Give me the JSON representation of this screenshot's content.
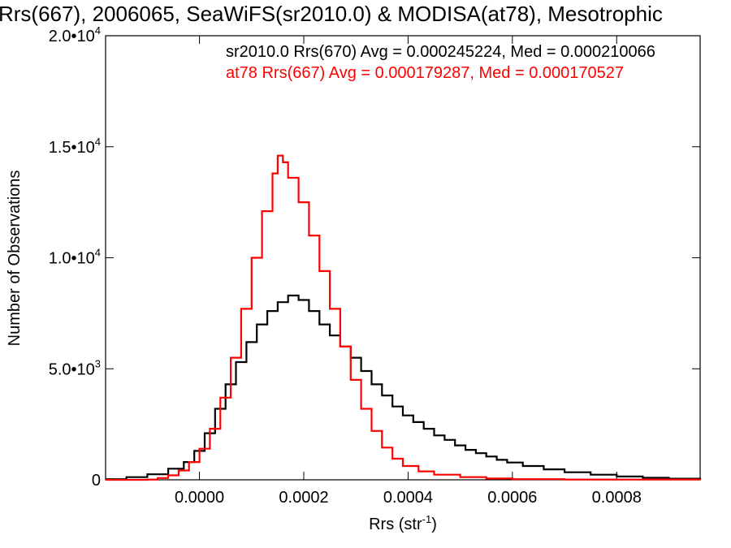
{
  "chart_data": {
    "type": "line",
    "title": "Rrs(667), 2006065, SeaWiFS(sr2010.0) & MODISA(at78), Mesotrophic",
    "xlabel_base": "Rrs (str",
    "xlabel_sup": "-1",
    "xlabel_close": ")",
    "ylabel": "Number of Observations",
    "xlim": [
      -0.00018,
      0.00096
    ],
    "ylim": [
      0,
      20000
    ],
    "x_ticks": [
      {
        "value": 0.0,
        "label": "0.0000"
      },
      {
        "value": 0.0002,
        "label": "0.0002"
      },
      {
        "value": 0.0004,
        "label": "0.0004"
      },
      {
        "value": 0.0006,
        "label": "0.0006"
      },
      {
        "value": 0.0008,
        "label": "0.0008"
      }
    ],
    "y_ticks": [
      {
        "value": 0,
        "mant": "0",
        "exp": ""
      },
      {
        "value": 5000,
        "mant": "5.0•10",
        "exp": "3"
      },
      {
        "value": 10000,
        "mant": "1.0•10",
        "exp": "4"
      },
      {
        "value": 15000,
        "mant": "1.5•10",
        "exp": "4"
      },
      {
        "value": 20000,
        "mant": "2.0•10",
        "exp": "4"
      }
    ],
    "legend": [
      {
        "text": "sr2010.0 Rrs(670) Avg = 0.000245224, Med = 0.000210066",
        "color": "#000000"
      },
      {
        "text": "at78 Rrs(667) Avg = 0.000179287, Med = 0.000170527",
        "color": "#ff0000"
      }
    ],
    "series": [
      {
        "color": "#000000",
        "points": [
          [
            -0.00018,
            30
          ],
          [
            -0.00014,
            120
          ],
          [
            -0.0001,
            250
          ],
          [
            -6e-05,
            500
          ],
          [
            -3e-05,
            800
          ],
          [
            -1e-05,
            1300
          ],
          [
            1e-05,
            2100
          ],
          [
            3e-05,
            3200
          ],
          [
            5e-05,
            4300
          ],
          [
            7e-05,
            5300
          ],
          [
            9e-05,
            6200
          ],
          [
            0.00011,
            7000
          ],
          [
            0.00013,
            7600
          ],
          [
            0.00015,
            8000
          ],
          [
            0.00017,
            8300
          ],
          [
            0.00019,
            8100
          ],
          [
            0.00021,
            7600
          ],
          [
            0.00023,
            7000
          ],
          [
            0.00025,
            6500
          ],
          [
            0.00027,
            6000
          ],
          [
            0.00029,
            5500
          ],
          [
            0.00031,
            4900
          ],
          [
            0.00033,
            4300
          ],
          [
            0.00035,
            3800
          ],
          [
            0.00037,
            3300
          ],
          [
            0.00039,
            2900
          ],
          [
            0.00041,
            2600
          ],
          [
            0.00043,
            2300
          ],
          [
            0.00045,
            2000
          ],
          [
            0.00047,
            1800
          ],
          [
            0.00049,
            1550
          ],
          [
            0.00051,
            1350
          ],
          [
            0.00053,
            1200
          ],
          [
            0.00055,
            1050
          ],
          [
            0.00057,
            900
          ],
          [
            0.00059,
            780
          ],
          [
            0.00062,
            620
          ],
          [
            0.00066,
            470
          ],
          [
            0.0007,
            340
          ],
          [
            0.00075,
            230
          ],
          [
            0.0008,
            150
          ],
          [
            0.00085,
            90
          ],
          [
            0.0009,
            50
          ],
          [
            0.00096,
            20
          ]
        ]
      },
      {
        "color": "#ff0000",
        "points": [
          [
            -0.00018,
            0
          ],
          [
            -0.00012,
            0
          ],
          [
            -0.0001,
            10
          ],
          [
            -8e-05,
            80
          ],
          [
            -6e-05,
            200
          ],
          [
            -4e-05,
            420
          ],
          [
            -2e-05,
            800
          ],
          [
            0.0,
            1400
          ],
          [
            2e-05,
            2300
          ],
          [
            4e-05,
            3700
          ],
          [
            6e-05,
            5500
          ],
          [
            8e-05,
            7700
          ],
          [
            0.0001,
            10000
          ],
          [
            0.00012,
            12100
          ],
          [
            0.00014,
            13800
          ],
          [
            0.00015,
            14600
          ],
          [
            0.00016,
            14300
          ],
          [
            0.00017,
            13600
          ],
          [
            0.00019,
            12500
          ],
          [
            0.00021,
            11000
          ],
          [
            0.00023,
            9400
          ],
          [
            0.00025,
            7700
          ],
          [
            0.00027,
            6000
          ],
          [
            0.00029,
            4500
          ],
          [
            0.00031,
            3200
          ],
          [
            0.00033,
            2200
          ],
          [
            0.00035,
            1450
          ],
          [
            0.00037,
            950
          ],
          [
            0.00039,
            620
          ],
          [
            0.00042,
            380
          ],
          [
            0.00045,
            230
          ],
          [
            0.0005,
            120
          ],
          [
            0.00055,
            60
          ],
          [
            0.0006,
            30
          ],
          [
            0.0007,
            10
          ],
          [
            0.00096,
            0
          ]
        ]
      }
    ]
  }
}
